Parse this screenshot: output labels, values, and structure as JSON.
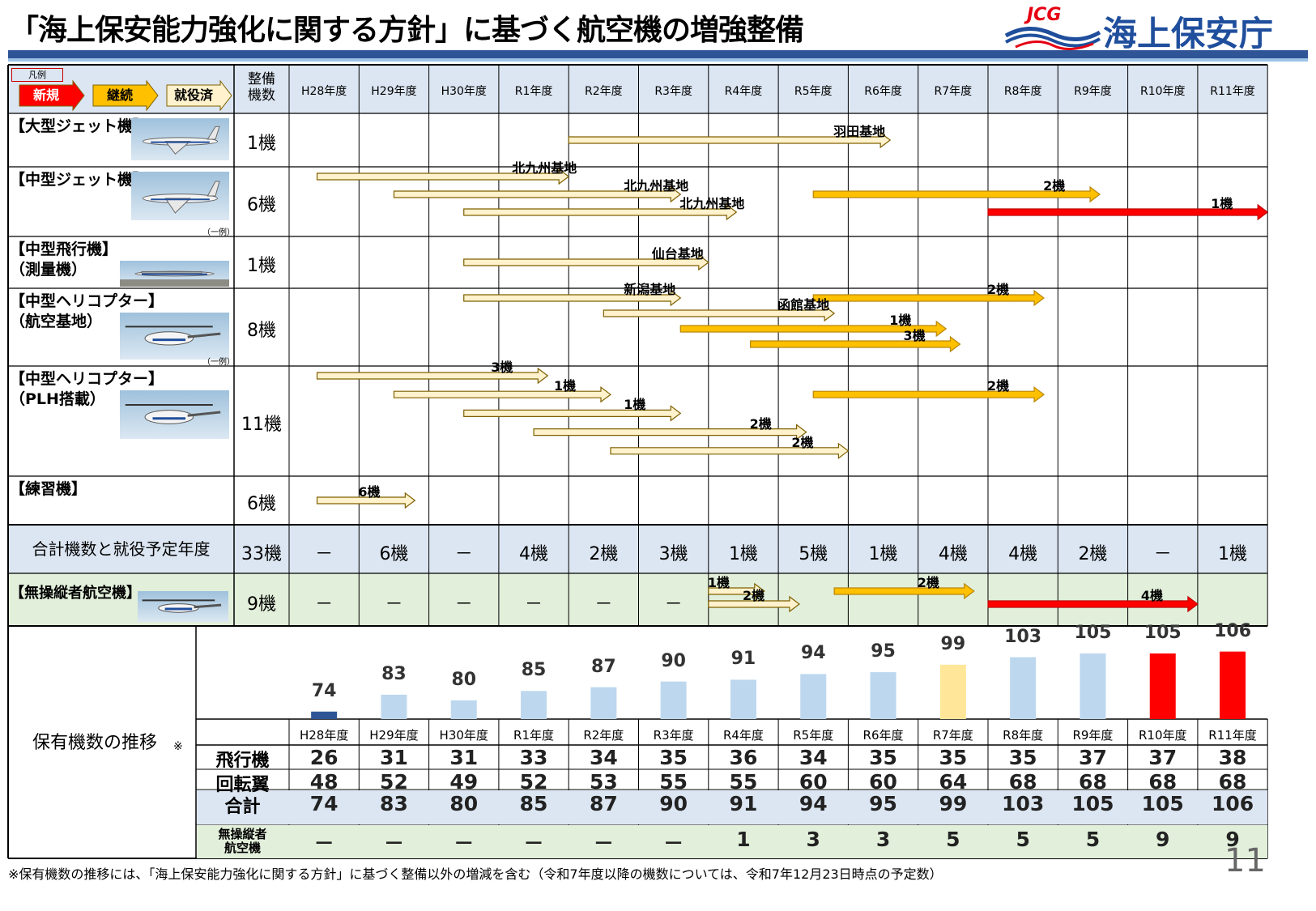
{
  "title": "「海上保安能力強化に関する方針」に基づく航空機の増強整備",
  "org": {
    "jcg": "JCG",
    "name": "海上保安庁"
  },
  "legend": {
    "title": "凡例",
    "items": [
      {
        "label": "新規",
        "color": "#ff0000"
      },
      {
        "label": "継続",
        "color": "#ffc000"
      },
      {
        "label": "就役済",
        "color": "#fff2cc"
      }
    ]
  },
  "header": {
    "maintenance_count": "整備\n機数"
  },
  "years": [
    "H28年度",
    "H29年度",
    "H30年度",
    "R1年度",
    "R2年度",
    "R3年度",
    "R4年度",
    "R5年度",
    "R6年度",
    "R7年度",
    "R8年度",
    "R9年度",
    "R10年度",
    "R11年度"
  ],
  "rows": [
    {
      "label": "【大型ジェット機】",
      "count": "1機",
      "photo": "jet-photo",
      "arrows": [
        {
          "from": 4,
          "to": 8.6,
          "kind": "done",
          "lane": 0,
          "text": "羽田基地"
        }
      ]
    },
    {
      "label": "【中型ジェット機】",
      "count": "6機",
      "note": "（一例）",
      "photo": "jet-photo",
      "arrows": [
        {
          "from": 0.4,
          "to": 4,
          "kind": "done",
          "lane": 0,
          "text": "北九州基地"
        },
        {
          "from": 1.5,
          "to": 5.6,
          "kind": "done",
          "lane": 1,
          "text": "北九州基地"
        },
        {
          "from": 2.5,
          "to": 6.4,
          "kind": "done",
          "lane": 2,
          "text": "北九州基地"
        },
        {
          "from": 7.5,
          "to": 11.6,
          "kind": "cont",
          "lane": 1,
          "text": "2機"
        },
        {
          "from": 10,
          "to": 14,
          "kind": "new",
          "lane": 2,
          "text": "1機"
        }
      ]
    },
    {
      "label": "【中型飛行機】\n（測量機）",
      "count": "1機",
      "photo": "plane-photo",
      "arrows": [
        {
          "from": 2.5,
          "to": 6,
          "kind": "done",
          "lane": 0,
          "text": "仙台基地"
        }
      ]
    },
    {
      "label": "【中型ヘリコプター】\n（航空基地）",
      "count": "8機",
      "note": "（一例）",
      "photo": "heli-photo",
      "arrows": [
        {
          "from": 2.5,
          "to": 5.6,
          "kind": "done",
          "lane": 0,
          "text": "新潟基地"
        },
        {
          "from": 4.5,
          "to": 7.8,
          "kind": "done",
          "lane": 1,
          "text": "函館基地"
        },
        {
          "from": 7.5,
          "to": 10.8,
          "kind": "cont",
          "lane": 0,
          "text": "2機"
        },
        {
          "from": 5.6,
          "to": 9.4,
          "kind": "cont",
          "lane": 2,
          "text": "1機"
        },
        {
          "from": 6.6,
          "to": 9.6,
          "kind": "cont",
          "lane": 3,
          "text": "3機"
        }
      ]
    },
    {
      "label": "【中型ヘリコプター】\n（PLH搭載）",
      "count": "11機",
      "photo": "heli-photo",
      "arrows": [
        {
          "from": 0.4,
          "to": 3.7,
          "kind": "done",
          "lane": 0,
          "text": "3機"
        },
        {
          "from": 1.5,
          "to": 4.6,
          "kind": "done",
          "lane": 1,
          "text": "1機"
        },
        {
          "from": 2.5,
          "to": 5.6,
          "kind": "done",
          "lane": 2,
          "text": "1機"
        },
        {
          "from": 3.5,
          "to": 7.4,
          "kind": "done",
          "lane": 3,
          "text": "2機"
        },
        {
          "from": 4.6,
          "to": 8,
          "kind": "done",
          "lane": 4,
          "text": "2機"
        },
        {
          "from": 7.5,
          "to": 10.8,
          "kind": "cont",
          "lane": 1,
          "text": "2機"
        }
      ]
    },
    {
      "label": "【練習機】",
      "count": "6機",
      "arrows": [
        {
          "from": 0.4,
          "to": 1.8,
          "kind": "done",
          "lane": 0,
          "text": "6機"
        }
      ]
    }
  ],
  "totals": {
    "label": "合計機数と就役予定年度",
    "count": "33機",
    "values": [
      "－",
      "6機",
      "－",
      "4機",
      "2機",
      "3機",
      "1機",
      "5機",
      "1機",
      "4機",
      "4機",
      "2機",
      "－",
      "1機"
    ]
  },
  "uav": {
    "label": "【無操縦者航空機】",
    "count": "9機",
    "values": [
      "－",
      "－",
      "－",
      "－",
      "－",
      "－",
      "",
      "",
      "",
      "",
      "",
      "",
      "",
      ""
    ],
    "arrows": [
      {
        "from": 6,
        "to": 6.8,
        "kind": "done",
        "lane": 0,
        "text": "1機"
      },
      {
        "from": 6,
        "to": 7.3,
        "kind": "done",
        "lane": 1,
        "text": "2機"
      },
      {
        "from": 7.8,
        "to": 9.8,
        "kind": "cont",
        "lane": 0,
        "text": "2機"
      },
      {
        "from": 10,
        "to": 13,
        "kind": "new",
        "lane": 1,
        "text": "4機"
      }
    ]
  },
  "holdings_title": "保有機数の推移",
  "holdings_mark": "※",
  "chart_data": {
    "type": "bar",
    "categories": [
      "H28年度",
      "H29年度",
      "H30年度",
      "R1年度",
      "R2年度",
      "R3年度",
      "R4年度",
      "R5年度",
      "R6年度",
      "R7年度",
      "R8年度",
      "R9年度",
      "R10年度",
      "R11年度"
    ],
    "values": [
      74,
      83,
      80,
      85,
      87,
      90,
      91,
      94,
      95,
      99,
      103,
      105,
      105,
      106
    ],
    "colors": [
      "#2f5597",
      "#bdd7ee",
      "#bdd7ee",
      "#bdd7ee",
      "#bdd7ee",
      "#bdd7ee",
      "#bdd7ee",
      "#bdd7ee",
      "#bdd7ee",
      "#ffe699",
      "#bdd7ee",
      "#bdd7ee",
      "#ff0000",
      "#ff0000"
    ],
    "ylim": [
      70,
      108
    ]
  },
  "table": {
    "rows": [
      {
        "label": "飛行機",
        "values": [
          "26",
          "31",
          "31",
          "33",
          "34",
          "35",
          "36",
          "34",
          "35",
          "35",
          "35",
          "37",
          "37",
          "38"
        ]
      },
      {
        "label": "回転翼",
        "values": [
          "48",
          "52",
          "49",
          "52",
          "53",
          "55",
          "55",
          "60",
          "60",
          "64",
          "68",
          "68",
          "68",
          "68"
        ]
      },
      {
        "label": "合計",
        "values": [
          "74",
          "83",
          "80",
          "85",
          "87",
          "90",
          "91",
          "94",
          "95",
          "99",
          "103",
          "105",
          "105",
          "106"
        ]
      },
      {
        "label": "無操縦者\n航空機",
        "values": [
          "－",
          "－",
          "－",
          "－",
          "－",
          "－",
          "1",
          "3",
          "3",
          "5",
          "5",
          "5",
          "9",
          "9"
        ]
      }
    ]
  },
  "footnote": "※保有機数の推移には、「海上保安能力強化に関する方針」に基づく整備以外の増減を含む（令和7年度以降の機数については、令和7年12月23日時点の予定数）",
  "page_number": "11"
}
